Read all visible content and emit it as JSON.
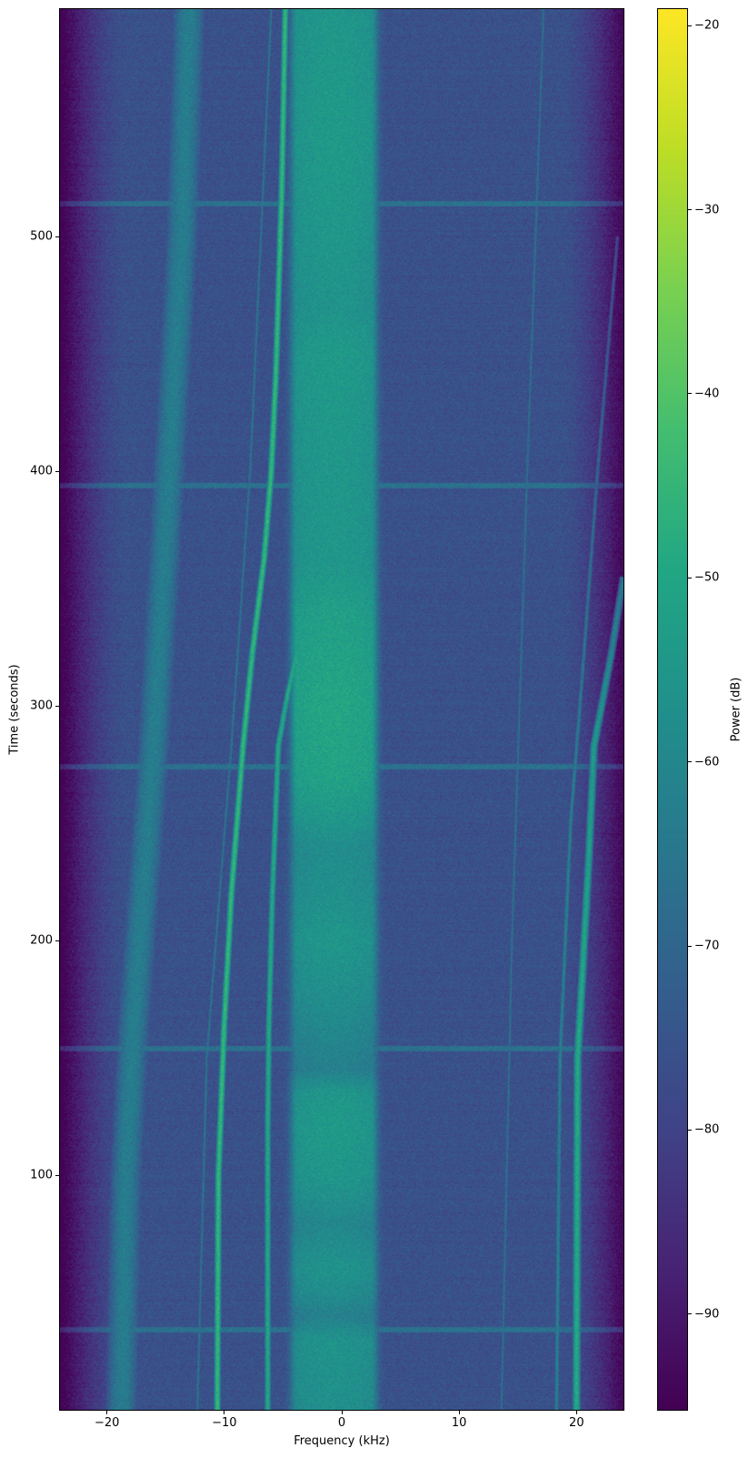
{
  "chart_data": {
    "type": "heatmap",
    "subtype": "spectrogram",
    "title": "",
    "xlabel": "Frequency (kHz)",
    "ylabel": "Time (seconds)",
    "colorbar_label": "Power (dB)",
    "colormap": "viridis",
    "xlim": [
      -24,
      24
    ],
    "ylim": [
      0,
      597
    ],
    "clim": [
      -95.2,
      -19.1
    ],
    "xticks": [
      -20,
      -10,
      0,
      10,
      20
    ],
    "xtick_labels": [
      "−20",
      "−10",
      "0",
      "10",
      "20"
    ],
    "yticks": [
      100,
      200,
      300,
      400,
      500
    ],
    "ytick_labels": [
      "100",
      "200",
      "300",
      "400",
      "500"
    ],
    "cticks": [
      -20,
      -30,
      -40,
      -50,
      -60,
      -70,
      -80,
      -90
    ],
    "ctick_labels": [
      "−20",
      "−30",
      "−40",
      "−50",
      "−60",
      "−70",
      "−80",
      "−90"
    ],
    "noise_floor_db": -76,
    "edge_rolloff_start_khz": 18.5,
    "central_band": {
      "f_low": -3.8,
      "f_high": 2.5,
      "level_db_by_time": [
        [
          0,
          -57
        ],
        [
          30,
          -56
        ],
        [
          40,
          -62
        ],
        [
          50,
          -58
        ],
        [
          60,
          -56
        ],
        [
          80,
          -60
        ],
        [
          90,
          -57
        ],
        [
          100,
          -55
        ],
        [
          120,
          -54
        ],
        [
          135,
          -55
        ],
        [
          145,
          -62
        ],
        [
          160,
          -60
        ],
        [
          180,
          -57
        ],
        [
          200,
          -55
        ],
        [
          220,
          -57
        ],
        [
          240,
          -58
        ],
        [
          255,
          -54
        ],
        [
          270,
          -51
        ],
        [
          300,
          -50
        ],
        [
          320,
          -51
        ],
        [
          340,
          -52
        ],
        [
          360,
          -55
        ],
        [
          400,
          -55
        ],
        [
          450,
          -54
        ],
        [
          470,
          -56
        ],
        [
          500,
          -55
        ],
        [
          540,
          -54
        ],
        [
          597,
          -55
        ]
      ]
    },
    "traces": [
      {
        "level_db": -45,
        "width_khz": 0.12,
        "points": [
          [
            0,
            -10.6
          ],
          [
            100,
            -10.5
          ],
          [
            165,
            -10.0
          ],
          [
            220,
            -9.4
          ],
          [
            283,
            -8.4
          ],
          [
            323,
            -7.6
          ],
          [
            363,
            -6.6
          ],
          [
            400,
            -6.0
          ],
          [
            442,
            -5.6
          ],
          [
            521,
            -5.1
          ],
          [
            597,
            -4.8
          ]
        ]
      },
      {
        "level_db": -50,
        "width_khz": 0.12,
        "points": [
          [
            0,
            -6.3
          ],
          [
            120,
            -6.3
          ],
          [
            165,
            -6.2
          ],
          [
            220,
            -5.9
          ],
          [
            283,
            -5.4
          ],
          [
            305,
            -4.6
          ],
          [
            323,
            -3.8
          ]
        ]
      },
      {
        "level_db": -47,
        "width_khz": 0.15,
        "points": [
          [
            0,
            20.0
          ],
          [
            150,
            20.1
          ],
          [
            185,
            20.5
          ],
          [
            230,
            21.0
          ],
          [
            283,
            21.5
          ],
          [
            323,
            23.0
          ],
          [
            355,
            24.0
          ]
        ]
      },
      {
        "level_db": -62,
        "width_khz": 0.1,
        "points": [
          [
            0,
            18.3
          ],
          [
            150,
            18.6
          ],
          [
            250,
            19.5
          ],
          [
            320,
            20.6
          ],
          [
            400,
            21.8
          ],
          [
            500,
            23.5
          ]
        ]
      },
      {
        "level_db": -63,
        "width_khz": 0.8,
        "points": [
          [
            0,
            -18.8
          ],
          [
            100,
            -18.4
          ],
          [
            165,
            -17.7
          ],
          [
            283,
            -16.0
          ],
          [
            400,
            -14.7
          ],
          [
            500,
            -13.6
          ],
          [
            597,
            -13.0
          ]
        ]
      },
      {
        "level_db": -66,
        "width_khz": 0.08,
        "points": [
          [
            0,
            -12.3
          ],
          [
            150,
            -11.5
          ],
          [
            283,
            -9.4
          ],
          [
            400,
            -7.8
          ],
          [
            597,
            -6.0
          ]
        ]
      },
      {
        "level_db": -67,
        "width_khz": 0.08,
        "points": [
          [
            0,
            13.6
          ],
          [
            200,
            14.5
          ],
          [
            400,
            15.8
          ],
          [
            597,
            17.2
          ]
        ]
      }
    ],
    "horizontal_bursts_time_s": [
      34,
      154,
      274,
      394,
      514
    ],
    "grid": false,
    "legend": "none"
  }
}
